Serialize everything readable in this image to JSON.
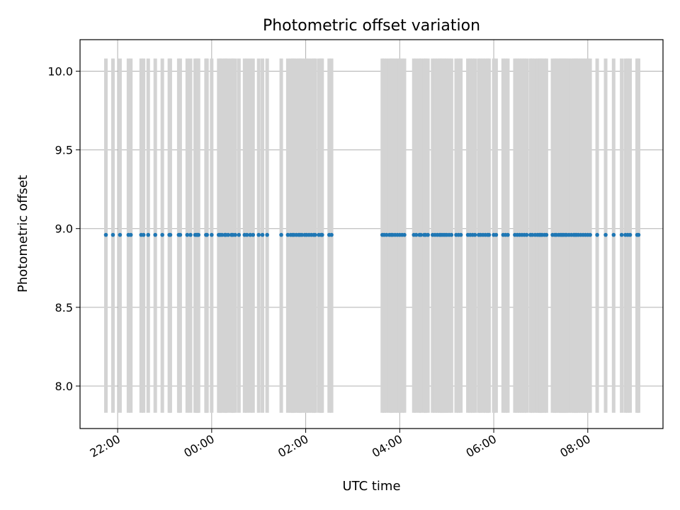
{
  "chart_data": {
    "type": "scatter",
    "title": "Photometric offset variation",
    "xlabel": "UTC time",
    "ylabel": "Photometric offset",
    "x_unit": "hours",
    "xlim": [
      -2.8,
      9.6
    ],
    "ylim": [
      7.73,
      10.2
    ],
    "grid": true,
    "xticks": [
      {
        "value": -2,
        "label": "22:00"
      },
      {
        "value": 0,
        "label": "00:00"
      },
      {
        "value": 2,
        "label": "02:00"
      },
      {
        "value": 4,
        "label": "04:00"
      },
      {
        "value": 6,
        "label": "06:00"
      },
      {
        "value": 8,
        "label": "08:00"
      }
    ],
    "yticks": [
      {
        "value": 8.0,
        "label": "8.0"
      },
      {
        "value": 8.5,
        "label": "8.5"
      },
      {
        "value": 9.0,
        "label": "9.0"
      },
      {
        "value": 9.5,
        "label": "9.5"
      },
      {
        "value": 10.0,
        "label": "10.0"
      }
    ],
    "errorbar_range": [
      7.83,
      10.08
    ],
    "point_color": "#1f77b4",
    "errorbar_color": "#d3d3d3",
    "points": {
      "y": 8.96,
      "x": [
        -2.25,
        -2.1,
        -1.95,
        -1.77,
        -1.72,
        -1.5,
        -1.45,
        -1.35,
        -1.2,
        -1.05,
        -0.9,
        -0.88,
        -0.7,
        -0.67,
        -0.52,
        -0.45,
        -0.35,
        -0.28,
        -0.32,
        -0.3,
        -0.1,
        0.0,
        -0.12,
        0.15,
        0.18,
        0.22,
        0.28,
        0.3,
        0.35,
        0.42,
        0.45,
        0.5,
        0.58,
        0.7,
        0.75,
        0.82,
        0.88,
        1.0,
        1.08,
        1.18,
        1.48,
        1.62,
        1.68,
        1.72,
        1.75,
        1.8,
        1.85,
        1.88,
        1.92,
        1.98,
        2.02,
        2.07,
        2.12,
        2.17,
        2.2,
        2.28,
        2.33,
        2.35,
        2.5,
        2.55,
        3.63,
        3.67,
        3.72,
        3.78,
        3.82,
        3.85,
        3.9,
        3.95,
        4.0,
        4.05,
        4.1,
        4.3,
        4.35,
        4.42,
        4.45,
        4.52,
        4.55,
        4.6,
        4.7,
        4.75,
        4.8,
        4.85,
        4.88,
        4.92,
        4.96,
        5.0,
        5.05,
        5.1,
        5.2,
        5.25,
        5.3,
        5.45,
        5.5,
        5.55,
        5.6,
        5.68,
        5.72,
        5.77,
        5.82,
        5.87,
        5.9,
        6.0,
        6.05,
        6.2,
        6.25,
        6.3,
        6.45,
        6.5,
        6.55,
        6.6,
        6.65,
        6.7,
        6.78,
        6.82,
        6.88,
        6.93,
        6.97,
        7.0,
        7.03,
        7.08,
        7.12,
        7.25,
        7.3,
        7.33,
        7.38,
        7.42,
        7.45,
        7.48,
        7.52,
        7.55,
        7.6,
        7.65,
        7.7,
        7.73,
        7.76,
        7.8,
        7.85,
        7.9,
        7.95,
        8.0,
        8.05,
        8.2,
        8.38,
        8.55,
        8.72,
        8.8,
        8.85,
        8.9,
        9.05,
        9.08
      ]
    }
  }
}
